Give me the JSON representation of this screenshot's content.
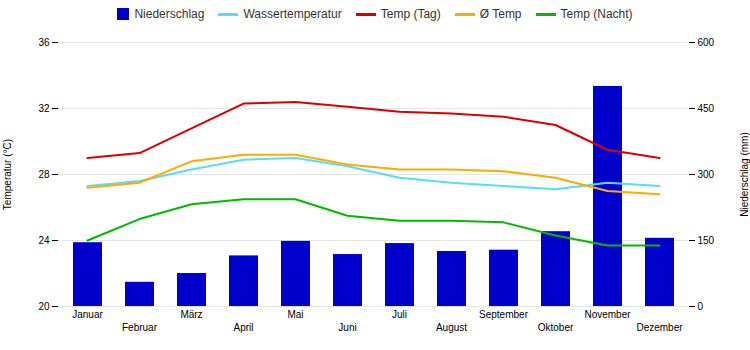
{
  "chart_data": {
    "type": "bar_line",
    "categories": [
      "Januar",
      "Februar",
      "März",
      "April",
      "Mai",
      "Juni",
      "Juli",
      "August",
      "September",
      "Oktober",
      "November",
      "Dezember"
    ],
    "series": [
      {
        "name": "Niederschlag",
        "type": "bar",
        "axis": "y2",
        "color": "#0000cc",
        "values": [
          145,
          55,
          75,
          115,
          148,
          118,
          143,
          125,
          128,
          170,
          500,
          155
        ]
      },
      {
        "name": "Wassertemperatur",
        "type": "line",
        "color": "#55ddff",
        "values": [
          27.3,
          27.6,
          28.3,
          28.9,
          29.0,
          28.5,
          27.8,
          27.5,
          27.3,
          27.1,
          27.5,
          27.3
        ]
      },
      {
        "name": "Temp (Tag)",
        "type": "line",
        "color": "#dd0000",
        "values": [
          29.0,
          29.3,
          30.8,
          32.3,
          32.4,
          32.1,
          31.8,
          31.7,
          31.5,
          31.0,
          29.5,
          29.0
        ]
      },
      {
        "name": "Ø Temp",
        "type": "line",
        "color": "#ffaa00",
        "values": [
          27.2,
          27.5,
          28.8,
          29.2,
          29.2,
          28.6,
          28.3,
          28.3,
          28.2,
          27.8,
          27.0,
          26.8
        ]
      },
      {
        "name": "Temp (Nacht)",
        "type": "line",
        "color": "#00bb00",
        "values": [
          24.0,
          25.3,
          26.2,
          26.5,
          26.5,
          25.5,
          25.2,
          25.2,
          25.1,
          24.3,
          23.7,
          23.7
        ]
      }
    ],
    "ylabel": "Temperatur (°C)",
    "y2label": "Niederschlag (mm)",
    "ylim": [
      20,
      36
    ],
    "yticks": [
      20,
      24,
      28,
      32,
      36
    ],
    "y2lim": [
      0,
      600
    ],
    "y2ticks": [
      0,
      150,
      300,
      450,
      600
    ],
    "grid": true,
    "legend": "top"
  }
}
